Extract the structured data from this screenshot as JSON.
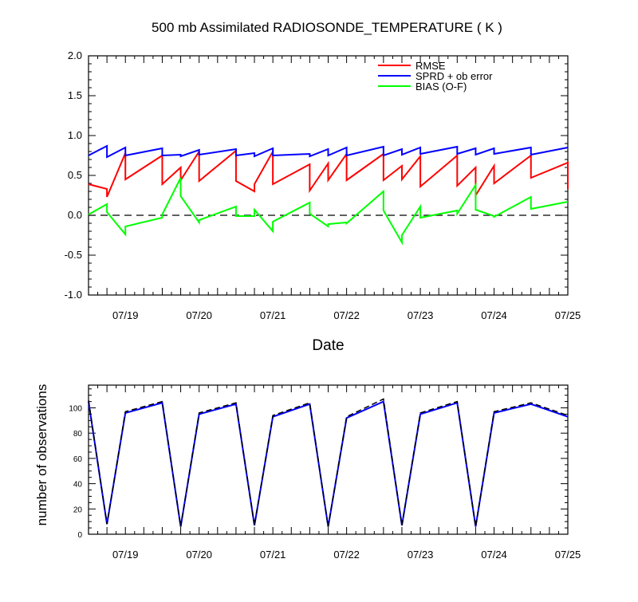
{
  "title": "500 mb Assimilated RADIOSONDE_TEMPERATURE ( K )",
  "colors": {
    "rmse": "#ff0000",
    "sprd": "#0000ff",
    "bias": "#00ff00",
    "obs": "#0000ff",
    "obs_dashed": "#000000",
    "axis": "#000000"
  },
  "chart_data": [
    {
      "type": "line",
      "xlabel": "Date",
      "ylabel": "",
      "x_domain": [
        0,
        6.5
      ],
      "ylim": [
        -1.0,
        2.0
      ],
      "y_ticks": [
        -1.0,
        -0.5,
        0.0,
        0.5,
        1.0,
        1.5,
        2.0
      ],
      "y_tick_labels": [
        "-1.0",
        "-0.5",
        "0.0",
        "0.5",
        "1.0",
        "1.5",
        "2.0"
      ],
      "x_ticks": [
        0.5,
        1.5,
        2.5,
        3.5,
        4.5,
        5.5,
        6.5
      ],
      "x_tick_labels": [
        "07/19",
        "07/20",
        "07/21",
        "07/22",
        "07/23",
        "07/24",
        "07/25"
      ],
      "zero_line": true,
      "legend": {
        "position": "top-right",
        "entries": [
          "RMSE",
          "SPRD + ob error",
          "BIAS (O-F)"
        ]
      },
      "series": [
        {
          "name": "RMSE",
          "color": "#ff0000",
          "x": [
            0,
            0.25,
            0.25,
            0.5,
            0.5,
            1.0,
            1.0,
            1.25,
            1.25,
            1.5,
            1.5,
            2.0,
            2.0,
            2.25,
            2.25,
            2.5,
            2.5,
            3.0,
            3.0,
            3.25,
            3.25,
            3.5,
            3.5,
            4.0,
            4.0,
            4.25,
            4.25,
            4.5,
            4.5,
            5.0,
            5.0,
            5.25,
            5.25,
            5.5,
            5.5,
            6.0,
            6.0,
            6.5,
            6.5
          ],
          "y": [
            0.39,
            0.33,
            0.23,
            0.78,
            0.45,
            0.75,
            0.39,
            0.6,
            0.44,
            0.8,
            0.43,
            0.81,
            0.43,
            0.3,
            0.39,
            0.8,
            0.39,
            0.64,
            0.31,
            0.65,
            0.44,
            0.77,
            0.44,
            0.77,
            0.44,
            0.62,
            0.45,
            0.74,
            0.36,
            0.75,
            0.37,
            0.6,
            0.25,
            0.62,
            0.4,
            0.75,
            0.47,
            0.66,
            0.33
          ]
        },
        {
          "name": "SPRD + ob error",
          "color": "#0000ff",
          "x": [
            0,
            0.25,
            0.25,
            0.5,
            0.5,
            1.0,
            1.0,
            1.25,
            1.25,
            1.5,
            1.5,
            2.0,
            2.0,
            2.25,
            2.25,
            2.5,
            2.5,
            3.0,
            3.0,
            3.25,
            3.25,
            3.5,
            3.5,
            4.0,
            4.0,
            4.25,
            4.25,
            4.5,
            4.5,
            5.0,
            5.0,
            5.25,
            5.25,
            5.5,
            5.5,
            6.0,
            6.0,
            6.5
          ],
          "y": [
            0.75,
            0.87,
            0.73,
            0.85,
            0.75,
            0.84,
            0.75,
            0.76,
            0.74,
            0.82,
            0.76,
            0.83,
            0.75,
            0.78,
            0.74,
            0.84,
            0.75,
            0.77,
            0.74,
            0.83,
            0.75,
            0.85,
            0.75,
            0.86,
            0.75,
            0.83,
            0.76,
            0.85,
            0.77,
            0.86,
            0.77,
            0.84,
            0.76,
            0.84,
            0.77,
            0.85,
            0.76,
            0.85
          ]
        },
        {
          "name": "BIAS (O-F)",
          "color": "#00ff00",
          "x": [
            0,
            0.25,
            0.25,
            0.5,
            0.5,
            1.0,
            1.0,
            1.25,
            1.25,
            1.5,
            1.5,
            2.0,
            2.0,
            2.25,
            2.25,
            2.5,
            2.5,
            3.0,
            3.0,
            3.25,
            3.25,
            3.5,
            3.5,
            4.0,
            4.0,
            4.25,
            4.25,
            4.5,
            4.5,
            5.0,
            5.0,
            5.25,
            5.25,
            5.5,
            5.5,
            6.0,
            6.0,
            6.5
          ],
          "y": [
            0.01,
            0.14,
            0.04,
            -0.24,
            -0.14,
            -0.03,
            0.01,
            0.47,
            0.24,
            -0.09,
            -0.06,
            0.11,
            -0.01,
            -0.01,
            0.07,
            -0.2,
            -0.08,
            0.16,
            0.02,
            -0.14,
            -0.11,
            -0.09,
            -0.1,
            0.3,
            0.06,
            -0.34,
            -0.25,
            0.11,
            -0.03,
            0.06,
            0.02,
            0.38,
            0.07,
            -0.01,
            -0.02,
            0.23,
            0.08,
            0.17
          ]
        }
      ]
    },
    {
      "type": "line",
      "xlabel": "",
      "ylabel": "number of observations",
      "x_domain": [
        0,
        6.5
      ],
      "ylim": [
        0,
        118
      ],
      "y_ticks": [
        0,
        20,
        40,
        60,
        80,
        100
      ],
      "y_tick_labels": [
        "0",
        "20",
        "40",
        "60",
        "80",
        "100"
      ],
      "x_ticks": [
        0.5,
        1.5,
        2.5,
        3.5,
        4.5,
        5.5,
        6.5
      ],
      "x_tick_labels": [
        "07/19",
        "07/20",
        "07/21",
        "07/22",
        "07/23",
        "07/24",
        "07/25"
      ],
      "series": [
        {
          "color": "#0000ff",
          "style": "solid",
          "x": [
            0,
            0.25,
            0.5,
            1.0,
            1.25,
            1.5,
            2.0,
            2.25,
            2.5,
            3.0,
            3.25,
            3.5,
            4.0,
            4.25,
            4.5,
            5.0,
            5.25,
            5.5,
            6.0,
            6.5
          ],
          "y": [
            105,
            8,
            96,
            104,
            6,
            95,
            103,
            7,
            93,
            103,
            6,
            92,
            105,
            7,
            95,
            104,
            6,
            96,
            103,
            93
          ]
        },
        {
          "color": "#000000",
          "style": "dashed",
          "x": [
            0,
            0.25,
            0.5,
            1.0,
            1.25,
            1.5,
            2.0,
            2.25,
            2.5,
            3.0,
            3.25,
            3.5,
            4.0,
            4.25,
            4.5,
            5.0,
            5.25,
            5.5,
            6.0,
            6.5
          ],
          "y": [
            106,
            8,
            97,
            105,
            6,
            96,
            104,
            7,
            94,
            104,
            6,
            93,
            107,
            7,
            96,
            105,
            6,
            97,
            104,
            94
          ]
        }
      ]
    }
  ]
}
